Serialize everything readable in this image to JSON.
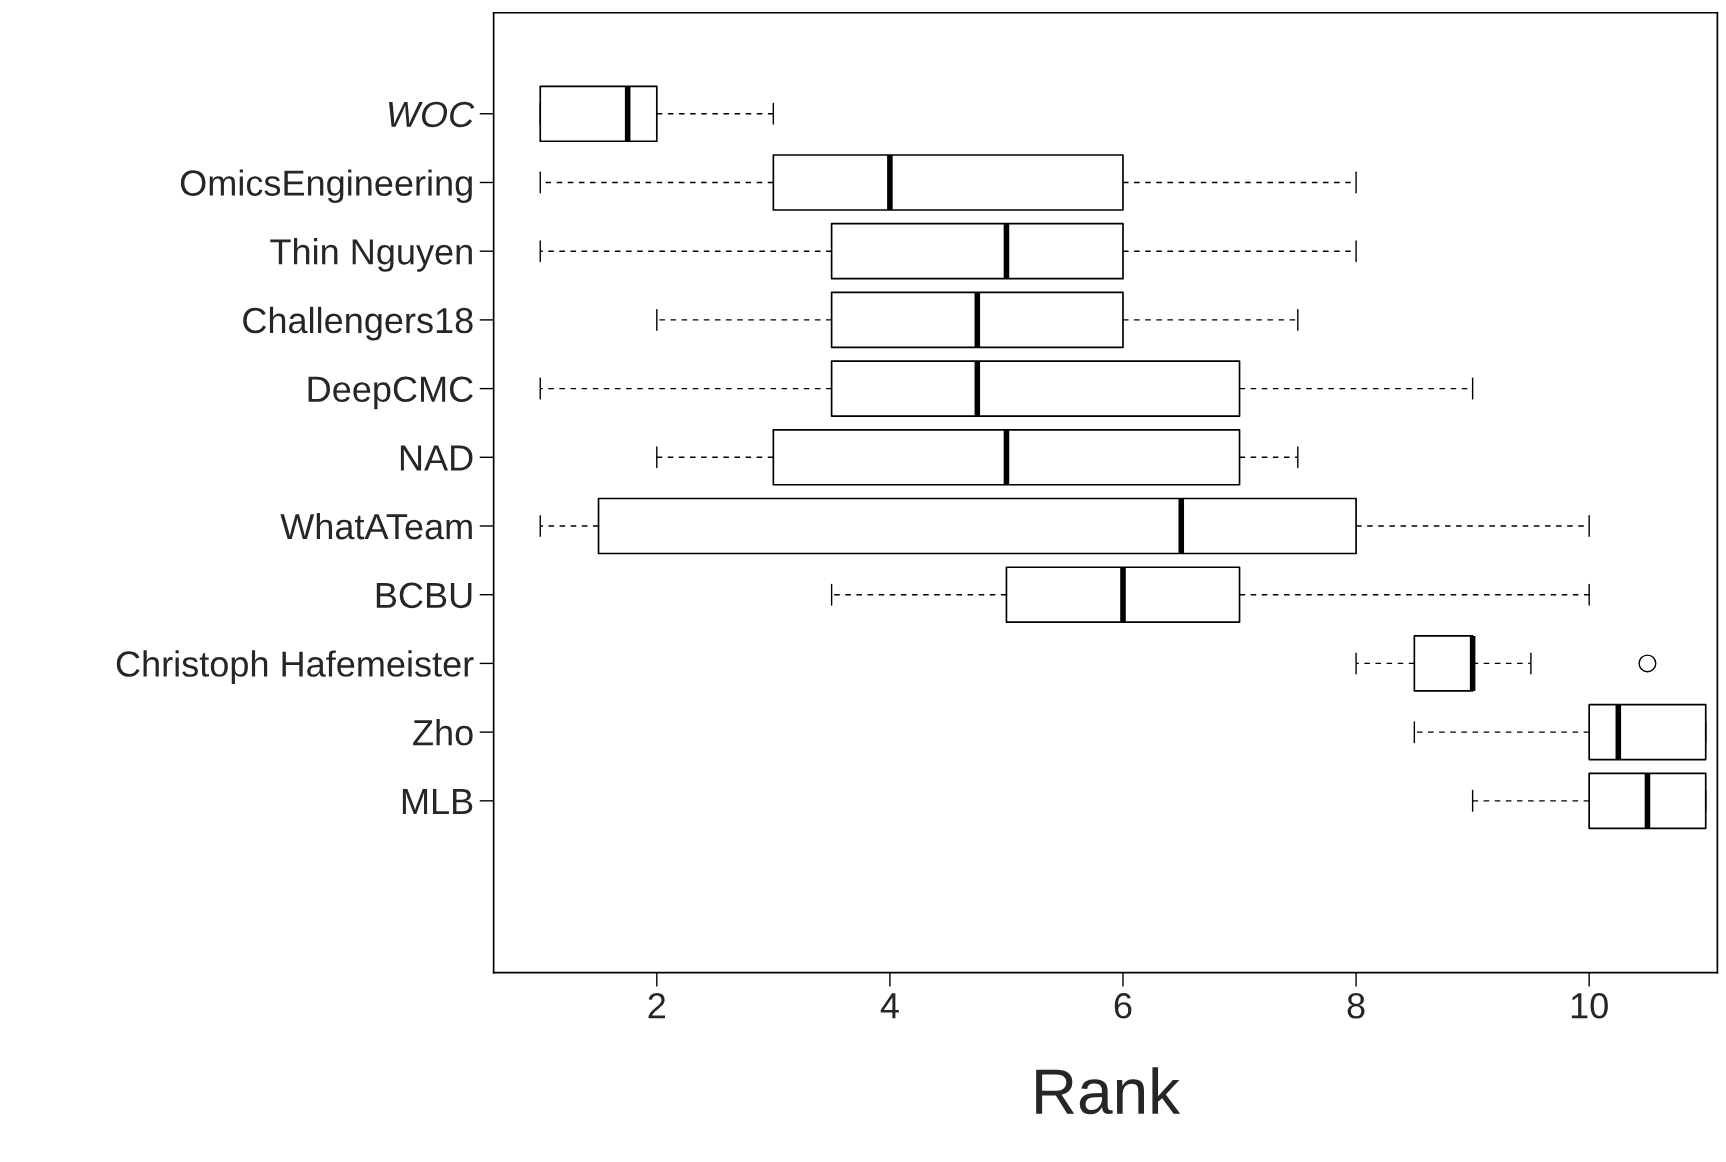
{
  "chart_data": {
    "type": "box",
    "orientation": "horizontal",
    "xlabel": "Rank",
    "categories": [
      "WOC",
      "OmicsEngineering",
      "Thin Nguyen",
      "Challengers18",
      "DeepCMC",
      "NAD",
      "WhatATeam",
      "BCBU",
      "Christoph Hafemeister",
      "Zho",
      "MLB"
    ],
    "boxes": [
      {
        "low": 1,
        "q1": 1,
        "median": 1.75,
        "q3": 2,
        "high": 3
      },
      {
        "low": 1,
        "q1": 3,
        "median": 4,
        "q3": 6,
        "high": 8
      },
      {
        "low": 1,
        "q1": 3.5,
        "median": 5,
        "q3": 6,
        "high": 8
      },
      {
        "low": 2,
        "q1": 3.5,
        "median": 4.75,
        "q3": 6,
        "high": 7.5
      },
      {
        "low": 1,
        "q1": 3.5,
        "median": 4.75,
        "q3": 7,
        "high": 9
      },
      {
        "low": 2,
        "q1": 3,
        "median": 5,
        "q3": 7,
        "high": 7.5
      },
      {
        "low": 1,
        "q1": 1.5,
        "median": 6.5,
        "q3": 8,
        "high": 10
      },
      {
        "low": 3.5,
        "q1": 5,
        "median": 6,
        "q3": 7,
        "high": 10
      },
      {
        "low": 8,
        "q1": 8.5,
        "median": 9,
        "q3": 9,
        "high": 9.5,
        "outliers": [
          10.5
        ]
      },
      {
        "low": 8.5,
        "q1": 10,
        "median": 10.25,
        "q3": 11,
        "high": 11
      },
      {
        "low": 9,
        "q1": 10,
        "median": 10.5,
        "q3": 11,
        "high": 11
      }
    ],
    "color": "#000000",
    "xlim": [
      0.6,
      11.1
    ],
    "xticks": [
      2,
      4,
      6,
      8,
      10
    ],
    "grid": false
  }
}
